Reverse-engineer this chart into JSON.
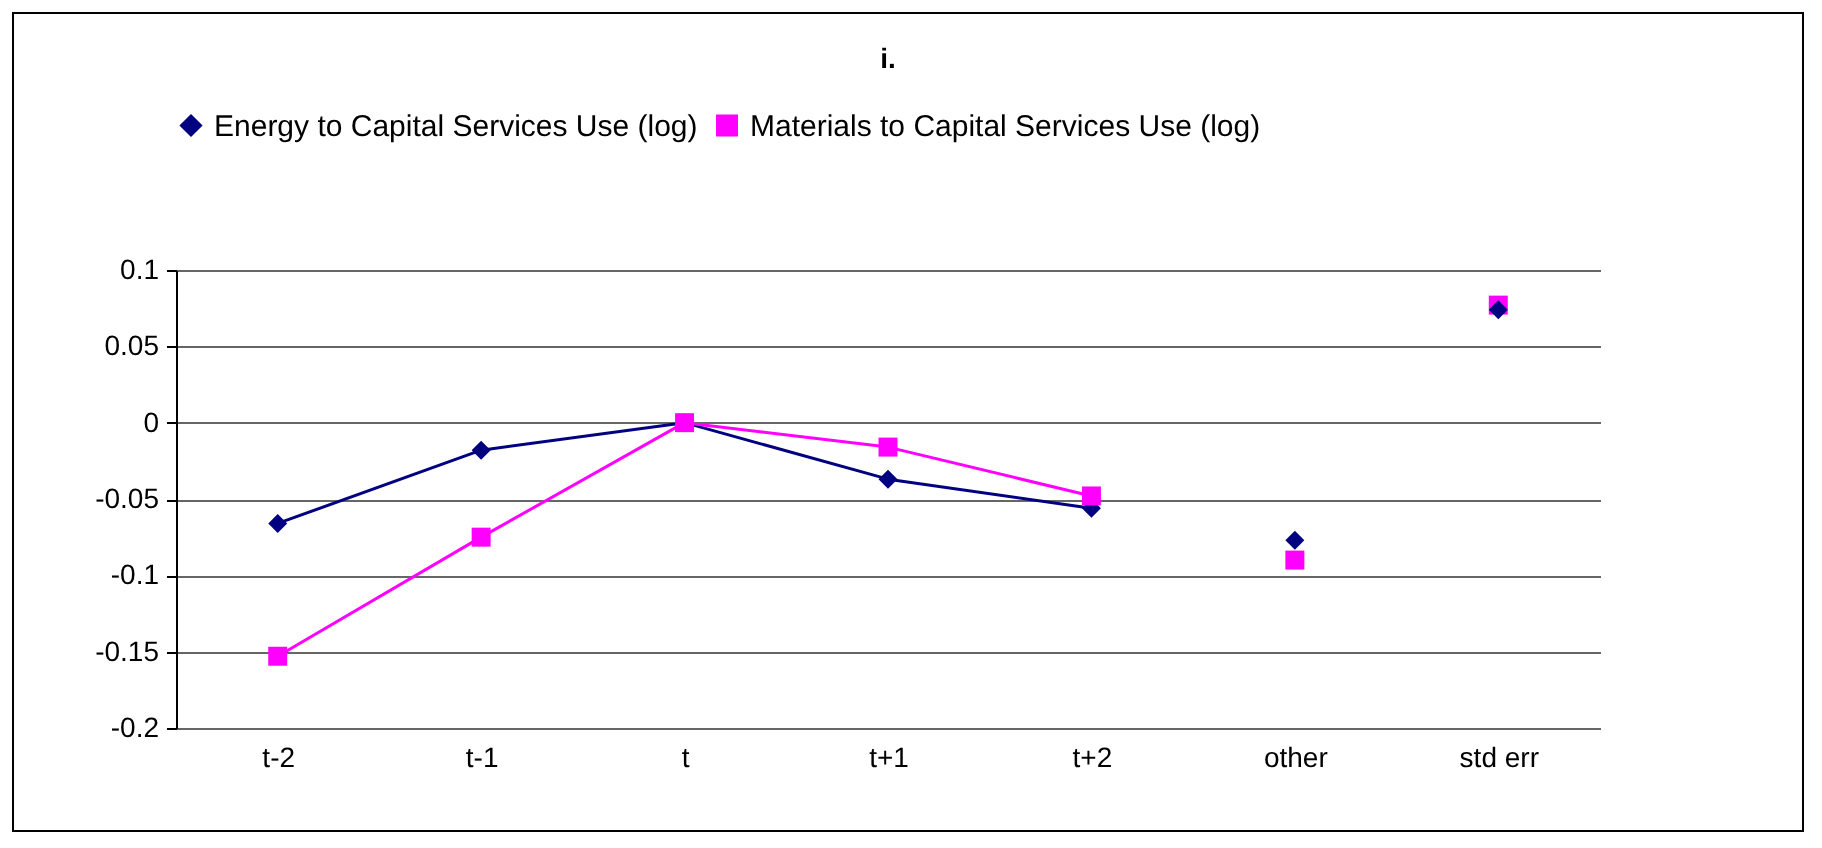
{
  "chart_data": {
    "type": "line",
    "title": "i.",
    "categories": [
      "t-2",
      "t-1",
      "t",
      "t+1",
      "t+2",
      "other",
      "std err"
    ],
    "series": [
      {
        "name": "Energy to Capital Services Use (log)",
        "color": "#000080",
        "marker": "diamond",
        "values": [
          -0.066,
          -0.018,
          0,
          -0.037,
          -0.056,
          null,
          null
        ]
      },
      {
        "name": "Materials to Capital Services Use (log)",
        "color": "#ff00ff",
        "marker": "square",
        "values": [
          -0.153,
          -0.075,
          0,
          -0.016,
          -0.048,
          null,
          null
        ]
      },
      {
        "type": "scatter",
        "color": "#ff00ff",
        "marker": "square",
        "values": [
          null,
          null,
          null,
          null,
          null,
          -0.09,
          0.077
        ]
      },
      {
        "type": "scatter",
        "color": "#000080",
        "marker": "diamond",
        "values": [
          null,
          null,
          null,
          null,
          null,
          -0.077,
          0.074
        ]
      }
    ],
    "ylim": [
      -0.2,
      0.1
    ],
    "yticks": [
      -0.2,
      -0.15,
      -0.1,
      -0.05,
      0,
      0.05,
      0.1
    ],
    "grid": "y",
    "legend": "top"
  }
}
